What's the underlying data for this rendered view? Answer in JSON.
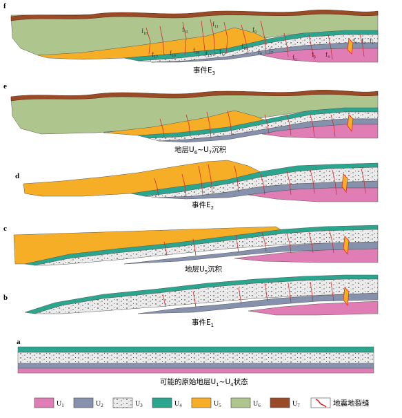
{
  "colors": {
    "U1": "#e07db5",
    "U2": "#8591ad",
    "U3": "#ececec",
    "U4": "#2aa58e",
    "U5": "#f6ae27",
    "U6": "#aec68d",
    "U7": "#9a4a26",
    "fissure": "#d42a2a"
  },
  "panels": [
    {
      "letter": "f",
      "caption": "事件E",
      "caption_sub": "3"
    },
    {
      "letter": "e",
      "caption": "地层U",
      "caption_sub": "6",
      "caption_mid": "~U",
      "caption_sub2": "7",
      "caption_end": "沉积"
    },
    {
      "letter": "d",
      "caption": "事件E",
      "caption_sub": "2"
    },
    {
      "letter": "c",
      "caption": "地层U",
      "caption_sub": "5",
      "caption_end": "沉积"
    },
    {
      "letter": "b",
      "caption": "事件E",
      "caption_sub": "1"
    },
    {
      "letter": "a",
      "caption": "可能的原始地层U",
      "caption_sub": "1",
      "caption_mid": "~U",
      "caption_sub2": "4",
      "caption_end": "状态"
    }
  ],
  "fault_labels": [
    {
      "text": "f",
      "sub": "18"
    },
    {
      "text": "f",
      "sub": "15"
    },
    {
      "text": "f",
      "sub": "11"
    },
    {
      "text": "f",
      "sub": "9"
    },
    {
      "text": "f",
      "sub": "17"
    },
    {
      "text": "f",
      "sub": "16"
    },
    {
      "text": "f",
      "sub": "14"
    },
    {
      "text": "f",
      "sub": "13"
    },
    {
      "text": "f",
      "sub": "12"
    },
    {
      "text": "f",
      "sub": "10"
    },
    {
      "text": "f",
      "sub": "8"
    },
    {
      "text": "f",
      "sub": "7"
    },
    {
      "text": "f",
      "sub": "6"
    },
    {
      "text": "f",
      "sub": "5"
    },
    {
      "text": "f",
      "sub": "4"
    },
    {
      "text": "f",
      "sub": "3"
    },
    {
      "text": "f",
      "sub": "2"
    },
    {
      "text": "f",
      "sub": "1"
    }
  ],
  "legend": [
    {
      "key": "U1",
      "label": "U",
      "sub": "1"
    },
    {
      "key": "U2",
      "label": "U",
      "sub": "2"
    },
    {
      "key": "U3",
      "label": "U",
      "sub": "3"
    },
    {
      "key": "U4",
      "label": "U",
      "sub": "4"
    },
    {
      "key": "U5",
      "label": "U",
      "sub": "5"
    },
    {
      "key": "U6",
      "label": "U",
      "sub": "6"
    },
    {
      "key": "U7",
      "label": "U",
      "sub": "7"
    },
    {
      "key": "fissure",
      "label": "地震地裂缝"
    }
  ]
}
